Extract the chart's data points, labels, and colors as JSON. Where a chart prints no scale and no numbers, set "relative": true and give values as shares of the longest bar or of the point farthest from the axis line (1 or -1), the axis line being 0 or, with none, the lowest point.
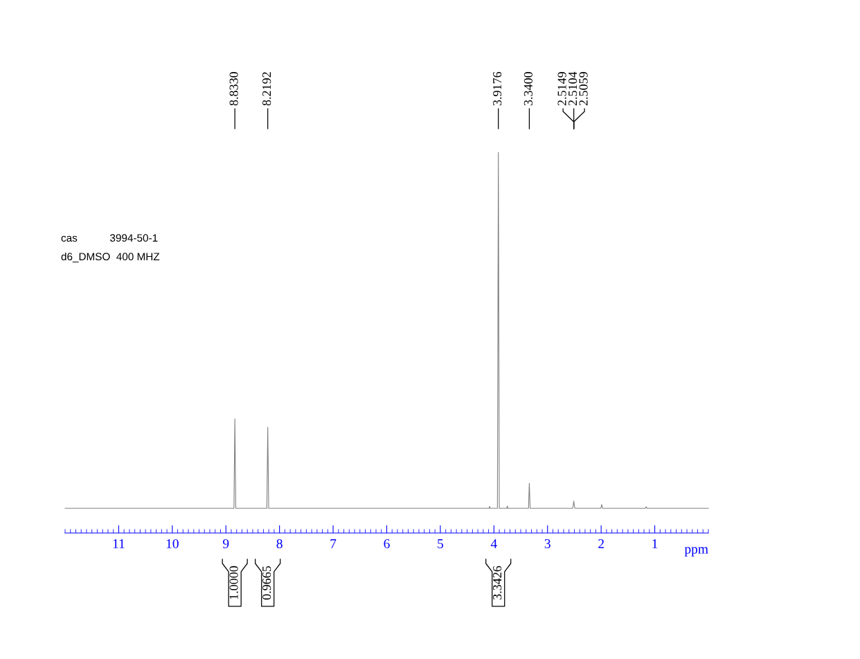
{
  "chart_data": {
    "type": "line",
    "relative": true,
    "xlabel": "ppm",
    "x": [
      12,
      8.85,
      8.833,
      8.816,
      8.236,
      8.2192,
      8.202,
      4.09,
      4.08,
      4.07,
      3.935,
      3.9176,
      3.9,
      3.76,
      3.75,
      3.74,
      3.355,
      3.34,
      3.325,
      2.53,
      2.5149,
      2.5104,
      2.5059,
      2.49,
      2.005,
      1.99,
      1.975,
      1.175,
      1.16,
      1.145,
      0
    ],
    "series": [
      {
        "color": "#808080",
        "values": [
          0.065,
          0.065,
          0.3,
          0.065,
          0.065,
          0.278,
          0.065,
          0.065,
          0.07,
          0.065,
          0.065,
          1,
          0.065,
          0.065,
          0.071,
          0.065,
          0.065,
          0.131,
          0.065,
          0.065,
          0.078,
          0.084,
          0.078,
          0.065,
          0.065,
          0.075,
          0.065,
          0.065,
          0.069,
          0.065,
          0.065
        ]
      }
    ],
    "xlim": [
      12,
      0
    ],
    "xticks": [
      1,
      2,
      3,
      4,
      5,
      6,
      7,
      8,
      9,
      10,
      11
    ],
    "annotations": [
      "cas           3994-50-1",
      "d6_DMSO  400 MHZ",
      {
        "text": "8.8330",
        "x": 8.833
      },
      {
        "text": "8.2192",
        "x": 8.2192
      },
      {
        "text": "3.9176",
        "x": 3.9176
      },
      {
        "text": "3.3400",
        "x": 3.34
      },
      {
        "text": "2.5149",
        "x": 2.5149
      },
      {
        "text": "2.5104",
        "x": 2.5104
      },
      {
        "text": "2.5059",
        "x": 2.5059
      },
      "1.0000",
      "0.9665",
      "3.3426"
    ]
  }
}
